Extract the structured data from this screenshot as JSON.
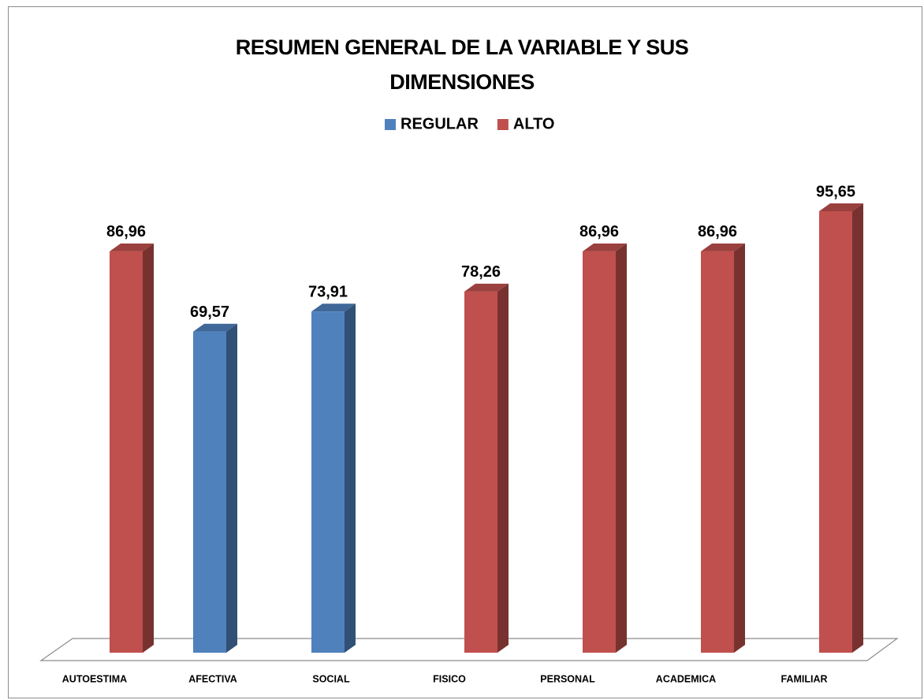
{
  "chart_data": {
    "type": "bar3d",
    "title": "RESUMEN GENERAL DE LA VARIABLE Y SUS DIMENSIONES",
    "categories": [
      "AUTOESTIMA",
      "AFECTIVA",
      "SOCIAL",
      "FISICO",
      "PERSONAL",
      "ACADEMICA",
      "FAMILIAR"
    ],
    "series": [
      {
        "name": "REGULAR",
        "color": "#4f81bd",
        "values": [
          null,
          69.57,
          73.91,
          null,
          null,
          null,
          null
        ],
        "value_labels": [
          null,
          "69,57",
          "73,91",
          null,
          null,
          null,
          null
        ]
      },
      {
        "name": "ALTO",
        "color": "#c0504d",
        "values": [
          86.96,
          null,
          null,
          78.26,
          86.96,
          86.96,
          95.65
        ],
        "value_labels": [
          "86,96",
          null,
          null,
          "78,26",
          "86,96",
          "86,96",
          "95,65"
        ]
      }
    ],
    "legend": "top"
  }
}
